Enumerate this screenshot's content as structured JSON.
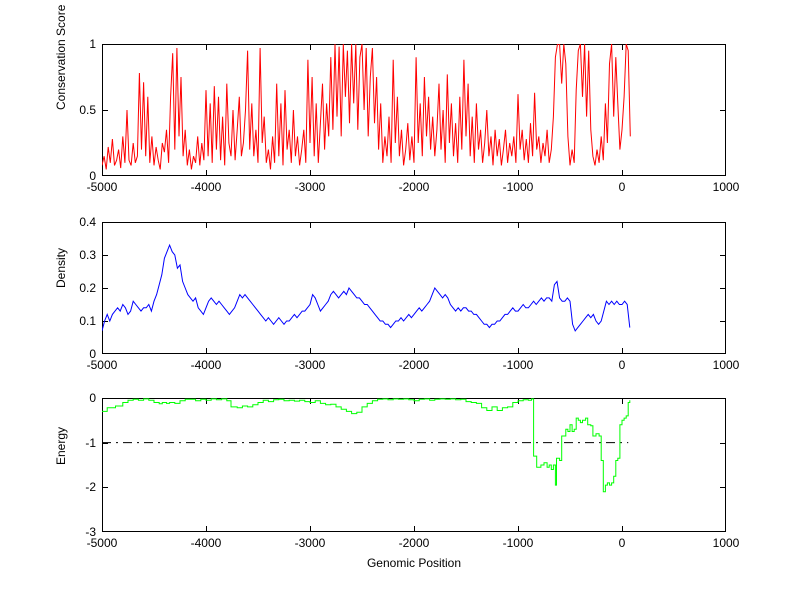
{
  "figure": {
    "background": "#ffffff",
    "xlabel": "Genomic Position"
  },
  "chart_data": [
    {
      "type": "line",
      "title": "",
      "ylabel": "Conservation Score",
      "xlabel": "",
      "grid": false,
      "legend": null,
      "xlim": [
        -5000,
        1000
      ],
      "ylim": [
        0,
        1
      ],
      "xticks": [
        -5000,
        -4000,
        -3000,
        -2000,
        -1000,
        0,
        1000
      ],
      "xtick_labels": [
        "-5000",
        "-4000",
        "-3000",
        "-2000",
        "-1000",
        "0",
        "1000"
      ],
      "yticks": [
        0,
        0.5,
        1
      ],
      "ytick_labels": [
        "0",
        "0.5",
        "1"
      ],
      "series": [
        {
          "name": "conservation-score",
          "color": "#ff0000",
          "interp": "linear",
          "x_start": -5000,
          "x_step": 20,
          "values": [
            0.08,
            0.15,
            0.05,
            0.22,
            0.1,
            0.28,
            0.08,
            0.12,
            0.2,
            0.06,
            0.3,
            0.1,
            0.5,
            0.12,
            0.08,
            0.25,
            0.1,
            0.15,
            0.78,
            0.2,
            0.71,
            0.15,
            0.6,
            0.1,
            0.3,
            0.08,
            0.22,
            0.12,
            0.05,
            0.25,
            0.18,
            0.35,
            0.1,
            0.6,
            0.93,
            0.2,
            0.97,
            0.3,
            0.75,
            0.15,
            0.35,
            0.08,
            0.2,
            0.05,
            0.15,
            0.1,
            0.3,
            0.08,
            0.25,
            0.12,
            0.65,
            0.15,
            0.55,
            0.1,
            0.68,
            0.2,
            0.6,
            0.12,
            0.45,
            0.08,
            0.7,
            0.25,
            0.15,
            0.5,
            0.12,
            0.35,
            0.6,
            0.15,
            0.25,
            0.5,
            0.95,
            0.2,
            0.55,
            0.15,
            0.35,
            0.1,
            0.97,
            0.25,
            0.45,
            0.1,
            0.2,
            0.05,
            0.3,
            0.1,
            0.7,
            0.15,
            0.55,
            0.08,
            0.65,
            0.2,
            0.35,
            0.1,
            0.5,
            0.15,
            0.3,
            0.08,
            0.2,
            0.35,
            0.1,
            0.88,
            0.25,
            0.75,
            0.15,
            0.55,
            0.1,
            0.4,
            0.7,
            0.2,
            0.55,
            0.3,
            0.9,
            0.35,
            1.0,
            0.45,
            0.98,
            0.3,
            1.0,
            0.6,
            0.95,
            0.4,
            1.0,
            0.55,
            1.0,
            0.35,
            0.9,
            1.0,
            0.5,
            0.97,
            0.3,
            0.75,
            0.97,
            0.4,
            0.75,
            0.2,
            0.55,
            0.1,
            0.3,
            0.15,
            0.45,
            0.1,
            0.88,
            0.25,
            0.6,
            0.15,
            0.35,
            0.08,
            0.2,
            0.4,
            0.12,
            0.3,
            0.1,
            0.9,
            0.25,
            0.55,
            0.15,
            0.75,
            0.3,
            0.6,
            0.2,
            0.45,
            0.15,
            0.35,
            0.7,
            0.2,
            0.5,
            0.1,
            0.77,
            0.25,
            0.55,
            0.15,
            0.4,
            0.1,
            0.6,
            0.2,
            0.88,
            0.3,
            0.7,
            0.15,
            0.45,
            0.1,
            0.55,
            0.2,
            0.35,
            0.1,
            0.25,
            0.5,
            0.15,
            0.3,
            0.08,
            0.35,
            0.15,
            0.28,
            0.08,
            0.2,
            0.35,
            0.1,
            0.25,
            0.15,
            0.3,
            0.1,
            0.62,
            0.2,
            0.35,
            0.12,
            0.28,
            0.1,
            0.4,
            0.15,
            0.63,
            0.2,
            0.3,
            0.1,
            0.25,
            0.15,
            0.35,
            0.1,
            0.2,
            0.45,
            0.9,
            1.0,
            1.0,
            0.7,
            1.0,
            0.85,
            0.3,
            0.08,
            0.2,
            0.1,
            0.65,
            0.95,
            1.0,
            0.6,
            1.0,
            0.45,
            0.95,
            0.35,
            0.15,
            0.08,
            0.2,
            0.1,
            0.3,
            0.12,
            0.55,
            0.25,
            0.85,
            1.0,
            0.45,
            0.9,
            0.55,
            0.2,
            0.35,
            0.6,
            1.0,
            0.95,
            0.3
          ]
        }
      ]
    },
    {
      "type": "line",
      "title": "",
      "ylabel": "Density",
      "xlabel": "",
      "grid": false,
      "legend": null,
      "xlim": [
        -5000,
        1000
      ],
      "ylim": [
        0,
        0.4
      ],
      "xticks": [
        -5000,
        -4000,
        -3000,
        -2000,
        -1000,
        0,
        1000
      ],
      "xtick_labels": [
        "-5000",
        "-4000",
        "-3000",
        "-2000",
        "-1000",
        "0",
        "1000"
      ],
      "yticks": [
        0,
        0.1,
        0.2,
        0.3,
        0.4
      ],
      "ytick_labels": [
        "0",
        "0.1",
        "0.2",
        "0.3",
        "0.4"
      ],
      "series": [
        {
          "name": "density",
          "color": "#0000ff",
          "interp": "linear",
          "x_start": -5000,
          "x_step": 25,
          "values": [
            0.07,
            0.1,
            0.12,
            0.1,
            0.12,
            0.13,
            0.14,
            0.13,
            0.15,
            0.14,
            0.12,
            0.13,
            0.16,
            0.15,
            0.14,
            0.13,
            0.14,
            0.14,
            0.15,
            0.13,
            0.16,
            0.18,
            0.21,
            0.24,
            0.29,
            0.31,
            0.33,
            0.31,
            0.3,
            0.26,
            0.27,
            0.22,
            0.2,
            0.18,
            0.17,
            0.16,
            0.17,
            0.14,
            0.13,
            0.12,
            0.14,
            0.16,
            0.17,
            0.16,
            0.15,
            0.16,
            0.15,
            0.14,
            0.13,
            0.12,
            0.13,
            0.14,
            0.16,
            0.18,
            0.17,
            0.18,
            0.17,
            0.16,
            0.15,
            0.14,
            0.13,
            0.12,
            0.11,
            0.1,
            0.11,
            0.1,
            0.09,
            0.1,
            0.11,
            0.1,
            0.09,
            0.1,
            0.1,
            0.11,
            0.12,
            0.11,
            0.12,
            0.13,
            0.13,
            0.14,
            0.15,
            0.18,
            0.17,
            0.15,
            0.13,
            0.14,
            0.15,
            0.16,
            0.18,
            0.19,
            0.18,
            0.17,
            0.18,
            0.19,
            0.18,
            0.2,
            0.19,
            0.18,
            0.17,
            0.17,
            0.16,
            0.15,
            0.15,
            0.14,
            0.13,
            0.12,
            0.11,
            0.1,
            0.1,
            0.09,
            0.09,
            0.08,
            0.09,
            0.1,
            0.1,
            0.11,
            0.1,
            0.11,
            0.12,
            0.11,
            0.12,
            0.13,
            0.14,
            0.13,
            0.14,
            0.15,
            0.16,
            0.18,
            0.2,
            0.19,
            0.18,
            0.17,
            0.18,
            0.17,
            0.15,
            0.14,
            0.13,
            0.14,
            0.13,
            0.14,
            0.14,
            0.13,
            0.13,
            0.12,
            0.12,
            0.11,
            0.1,
            0.09,
            0.09,
            0.08,
            0.09,
            0.09,
            0.1,
            0.1,
            0.11,
            0.12,
            0.12,
            0.13,
            0.14,
            0.13,
            0.13,
            0.14,
            0.15,
            0.14,
            0.14,
            0.15,
            0.16,
            0.15,
            0.16,
            0.17,
            0.16,
            0.17,
            0.17,
            0.16,
            0.21,
            0.22,
            0.17,
            0.16,
            0.16,
            0.17,
            0.16,
            0.09,
            0.07,
            0.08,
            0.09,
            0.1,
            0.11,
            0.12,
            0.11,
            0.12,
            0.1,
            0.09,
            0.1,
            0.13,
            0.16,
            0.15,
            0.16,
            0.15,
            0.16,
            0.15,
            0.15,
            0.16,
            0.15,
            0.08
          ]
        }
      ]
    },
    {
      "type": "line",
      "title": "",
      "ylabel": "Energy",
      "xlabel": "Genomic Position",
      "grid": false,
      "legend": null,
      "xlim": [
        -5000,
        1000
      ],
      "ylim": [
        -3,
        0
      ],
      "xticks": [
        -5000,
        -4000,
        -3000,
        -2000,
        -1000,
        0,
        1000
      ],
      "xtick_labels": [
        "-5000",
        "-4000",
        "-3000",
        "-2000",
        "-1000",
        "0",
        "1000"
      ],
      "yticks": [
        -3,
        -2,
        -1,
        0
      ],
      "ytick_labels": [
        "-3",
        "-2",
        "-1",
        "0"
      ],
      "reference_line": {
        "y": -1,
        "x_range": [
          -5000,
          60
        ],
        "style": "dash-dot",
        "color": "#000000"
      },
      "series": [
        {
          "name": "energy",
          "color": "#00ff00",
          "interp": "step",
          "points": [
            [
              -5000,
              -0.3
            ],
            [
              -4950,
              -0.22
            ],
            [
              -4870,
              -0.18
            ],
            [
              -4800,
              -0.1
            ],
            [
              -4750,
              -0.05
            ],
            [
              -4700,
              -0.03
            ],
            [
              -4650,
              -0.05
            ],
            [
              -4600,
              -0.02
            ],
            [
              -4550,
              -0.05
            ],
            [
              -4500,
              -0.1
            ],
            [
              -4450,
              -0.13
            ],
            [
              -4420,
              -0.1
            ],
            [
              -4380,
              -0.12
            ],
            [
              -4350,
              -0.1
            ],
            [
              -4300,
              -0.12
            ],
            [
              -4250,
              -0.06
            ],
            [
              -4200,
              -0.03
            ],
            [
              -4100,
              -0.06
            ],
            [
              -4050,
              -0.03
            ],
            [
              -4000,
              -0.05
            ],
            [
              -3950,
              -0.02
            ],
            [
              -3900,
              -0.04
            ],
            [
              -3850,
              -0.02
            ],
            [
              -3800,
              -0.06
            ],
            [
              -3760,
              -0.2
            ],
            [
              -3700,
              -0.22
            ],
            [
              -3650,
              -0.18
            ],
            [
              -3600,
              -0.2
            ],
            [
              -3550,
              -0.15
            ],
            [
              -3500,
              -0.1
            ],
            [
              -3450,
              -0.05
            ],
            [
              -3400,
              -0.08
            ],
            [
              -3350,
              -0.04
            ],
            [
              -3300,
              -0.03
            ],
            [
              -3250,
              -0.06
            ],
            [
              -3200,
              -0.05
            ],
            [
              -3150,
              -0.07
            ],
            [
              -3100,
              -0.05
            ],
            [
              -3050,
              -0.08
            ],
            [
              -3000,
              -0.1
            ],
            [
              -2950,
              -0.06
            ],
            [
              -2900,
              -0.12
            ],
            [
              -2850,
              -0.15
            ],
            [
              -2800,
              -0.14
            ],
            [
              -2750,
              -0.2
            ],
            [
              -2700,
              -0.25
            ],
            [
              -2650,
              -0.3
            ],
            [
              -2600,
              -0.35
            ],
            [
              -2550,
              -0.32
            ],
            [
              -2500,
              -0.2
            ],
            [
              -2450,
              -0.12
            ],
            [
              -2400,
              -0.06
            ],
            [
              -2350,
              -0.03
            ],
            [
              -2300,
              -0.02
            ],
            [
              -2250,
              -0.04
            ],
            [
              -2200,
              -0.02
            ],
            [
              -2150,
              -0.03
            ],
            [
              -2100,
              -0.02
            ],
            [
              -2050,
              -0.04
            ],
            [
              -2000,
              -0.06
            ],
            [
              -1950,
              -0.03
            ],
            [
              -1900,
              -0.02
            ],
            [
              -1850,
              -0.05
            ],
            [
              -1800,
              -0.03
            ],
            [
              -1750,
              -0.02
            ],
            [
              -1700,
              -0.03
            ],
            [
              -1650,
              -0.02
            ],
            [
              -1600,
              -0.04
            ],
            [
              -1550,
              -0.03
            ],
            [
              -1500,
              -0.08
            ],
            [
              -1450,
              -0.1
            ],
            [
              -1400,
              -0.12
            ],
            [
              -1350,
              -0.22
            ],
            [
              -1300,
              -0.28
            ],
            [
              -1250,
              -0.2
            ],
            [
              -1200,
              -0.28
            ],
            [
              -1150,
              -0.22
            ],
            [
              -1100,
              -0.2
            ],
            [
              -1050,
              -0.1
            ],
            [
              -1000,
              -0.06
            ],
            [
              -950,
              -0.04
            ],
            [
              -900,
              -0.05
            ],
            [
              -870,
              -0.02
            ],
            [
              -850,
              -1.3
            ],
            [
              -820,
              -1.55
            ],
            [
              -780,
              -1.5
            ],
            [
              -750,
              -1.45
            ],
            [
              -720,
              -1.55
            ],
            [
              -700,
              -1.5
            ],
            [
              -680,
              -1.6
            ],
            [
              -660,
              -1.5
            ],
            [
              -640,
              -1.95
            ],
            [
              -630,
              -1.35
            ],
            [
              -600,
              -1.4
            ],
            [
              -580,
              -0.85
            ],
            [
              -560,
              -0.85
            ],
            [
              -540,
              -0.7
            ],
            [
              -520,
              -0.75
            ],
            [
              -500,
              -0.6
            ],
            [
              -480,
              -0.75
            ],
            [
              -460,
              -0.7
            ],
            [
              -440,
              -0.45
            ],
            [
              -420,
              -0.5
            ],
            [
              -400,
              -0.55
            ],
            [
              -380,
              -0.5
            ],
            [
              -350,
              -0.45
            ],
            [
              -330,
              -0.6
            ],
            [
              -300,
              -0.62
            ],
            [
              -280,
              -0.85
            ],
            [
              -250,
              -0.8
            ],
            [
              -220,
              -0.85
            ],
            [
              -200,
              -1.4
            ],
            [
              -180,
              -2.1
            ],
            [
              -160,
              -1.95
            ],
            [
              -140,
              -1.9
            ],
            [
              -120,
              -1.95
            ],
            [
              -100,
              -1.9
            ],
            [
              -80,
              -1.75
            ],
            [
              -60,
              -1.4
            ],
            [
              -40,
              -1.35
            ],
            [
              -20,
              -0.6
            ],
            [
              0,
              -0.5
            ],
            [
              20,
              -0.45
            ],
            [
              40,
              -0.4
            ],
            [
              60,
              -0.1
            ],
            [
              75,
              -0.05
            ]
          ]
        }
      ]
    }
  ]
}
